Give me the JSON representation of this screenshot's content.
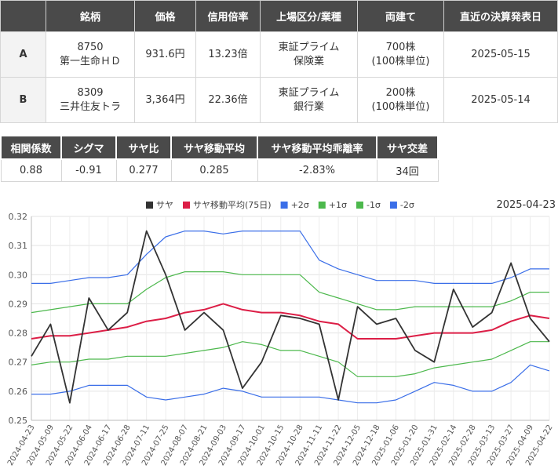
{
  "table": {
    "headers": [
      "",
      "銘柄",
      "価格",
      "信用倍率",
      "上場区分/業種",
      "両建て",
      "直近の決算発表日"
    ],
    "rows": [
      {
        "label": "A",
        "code": "8750",
        "name": "第一生命ＨＤ",
        "price": "931.6円",
        "ratio": "13.23倍",
        "market": "東証プライム",
        "sector": "保険業",
        "qty": "700株",
        "unit": "(100株単位)",
        "date": "2025-05-15"
      },
      {
        "label": "B",
        "code": "8309",
        "name": "三井住友トラ",
        "price": "3,364円",
        "ratio": "22.36倍",
        "market": "東証プライム",
        "sector": "銀行業",
        "qty": "200株",
        "unit": "(100株単位)",
        "date": "2025-05-14"
      }
    ]
  },
  "stats": {
    "headers": [
      "相関係数",
      "シグマ",
      "サヤ比",
      "サヤ移動平均",
      "サヤ移動平均乖離率",
      "サヤ交差"
    ],
    "values": [
      "0.88",
      "-0.91",
      "0.277",
      "0.285",
      "-2.83%",
      "34回"
    ]
  },
  "chart_data": {
    "type": "line",
    "date_label": "2025-04-23",
    "ylim": [
      0.25,
      0.32
    ],
    "yticks": [
      "0.25",
      "0.26",
      "0.27",
      "0.28",
      "0.29",
      "0.30",
      "0.31",
      "0.32"
    ],
    "grid": true,
    "legend_position": "top",
    "x": [
      "2024-04-23",
      "2024-05-09",
      "2024-05-22",
      "2024-06-04",
      "2024-06-17",
      "2024-06-28",
      "2024-07-11",
      "2024-07-25",
      "2024-08-07",
      "2024-08-21",
      "2024-09-03",
      "2024-09-17",
      "2024-10-01",
      "2024-10-15",
      "2024-10-28",
      "2024-11-11",
      "2024-11-22",
      "2024-12-05",
      "2024-12-18",
      "2025-01-06",
      "2025-01-20",
      "2025-01-31",
      "2025-02-14",
      "2025-02-28",
      "2025-03-13",
      "2025-03-27",
      "2025-04-09",
      "2025-04-22"
    ],
    "series": [
      {
        "name": "サヤ",
        "color": "#333333",
        "values": [
          0.272,
          0.283,
          0.256,
          0.292,
          0.281,
          0.287,
          0.315,
          0.3,
          0.281,
          0.287,
          0.281,
          0.261,
          0.27,
          0.286,
          0.285,
          0.283,
          0.257,
          0.289,
          0.283,
          0.285,
          0.274,
          0.27,
          0.295,
          0.282,
          0.287,
          0.304,
          0.285,
          0.277
        ]
      },
      {
        "name": "サヤ移動平均(75日)",
        "color": "#dc1e46",
        "values": [
          0.278,
          0.279,
          0.279,
          0.28,
          0.281,
          0.282,
          0.284,
          0.285,
          0.287,
          0.288,
          0.29,
          0.288,
          0.287,
          0.287,
          0.286,
          0.284,
          0.283,
          0.278,
          0.278,
          0.278,
          0.279,
          0.28,
          0.28,
          0.28,
          0.281,
          0.284,
          0.286,
          0.285
        ]
      },
      {
        "name": "+2σ",
        "color": "#3a6ee8",
        "values": [
          0.297,
          0.297,
          0.298,
          0.299,
          0.299,
          0.3,
          0.307,
          0.313,
          0.315,
          0.315,
          0.314,
          0.315,
          0.315,
          0.315,
          0.315,
          0.305,
          0.302,
          0.3,
          0.298,
          0.298,
          0.298,
          0.297,
          0.297,
          0.297,
          0.297,
          0.299,
          0.302,
          0.302
        ]
      },
      {
        "name": "+1σ",
        "color": "#4cb84c",
        "values": [
          0.287,
          0.288,
          0.289,
          0.29,
          0.29,
          0.29,
          0.295,
          0.299,
          0.301,
          0.301,
          0.301,
          0.3,
          0.3,
          0.3,
          0.3,
          0.294,
          0.292,
          0.29,
          0.288,
          0.288,
          0.289,
          0.289,
          0.289,
          0.289,
          0.289,
          0.291,
          0.294,
          0.294
        ]
      },
      {
        "name": "-1σ",
        "color": "#4cb84c",
        "values": [
          0.269,
          0.27,
          0.27,
          0.271,
          0.271,
          0.272,
          0.272,
          0.272,
          0.273,
          0.274,
          0.275,
          0.277,
          0.276,
          0.274,
          0.274,
          0.272,
          0.27,
          0.265,
          0.265,
          0.265,
          0.266,
          0.268,
          0.269,
          0.27,
          0.271,
          0.274,
          0.277,
          0.277
        ]
      },
      {
        "name": "-2σ",
        "color": "#3a6ee8",
        "values": [
          0.259,
          0.259,
          0.26,
          0.262,
          0.262,
          0.262,
          0.258,
          0.257,
          0.258,
          0.259,
          0.261,
          0.26,
          0.258,
          0.258,
          0.258,
          0.258,
          0.257,
          0.256,
          0.256,
          0.257,
          0.26,
          0.263,
          0.262,
          0.26,
          0.26,
          0.263,
          0.269,
          0.267
        ]
      }
    ]
  }
}
